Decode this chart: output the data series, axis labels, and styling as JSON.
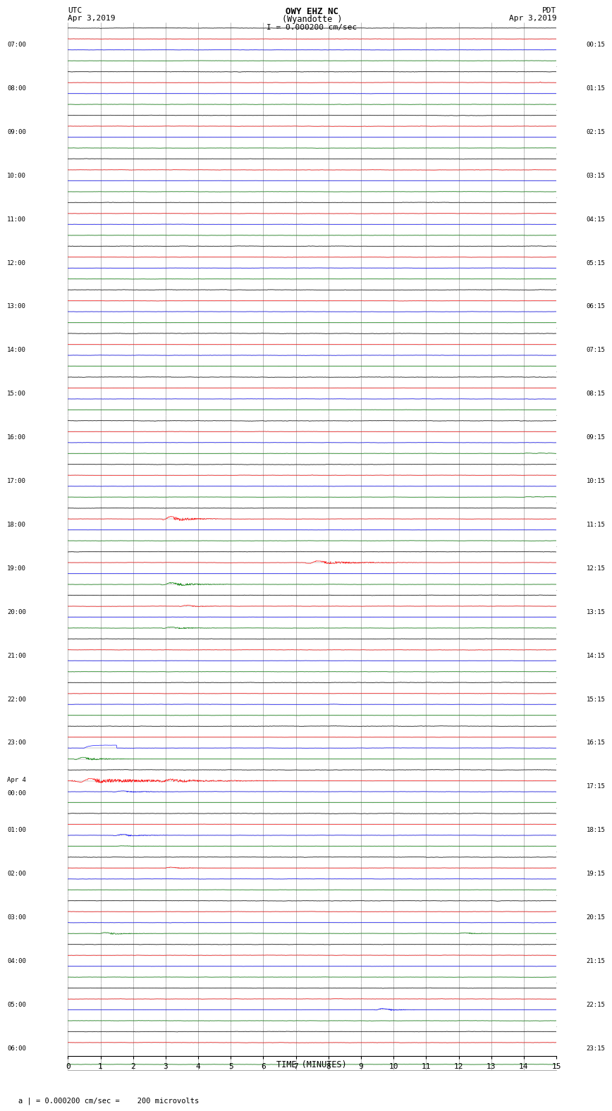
{
  "title_line1": "OWY EHZ NC",
  "title_line2": "(Wyandotte )",
  "scale_text": "I = 0.000200 cm/sec",
  "bottom_label": "a | = 0.000200 cm/sec =    200 microvolts",
  "xlabel": "TIME (MINUTES)",
  "xlim": [
    0,
    15
  ],
  "background_color": "#ffffff",
  "grid_color": "#888888",
  "left_times": [
    "07:00",
    "08:00",
    "09:00",
    "10:00",
    "11:00",
    "12:00",
    "13:00",
    "14:00",
    "15:00",
    "16:00",
    "17:00",
    "18:00",
    "19:00",
    "20:00",
    "21:00",
    "22:00",
    "23:00",
    "Apr 4\n00:00",
    "01:00",
    "02:00",
    "03:00",
    "04:00",
    "05:00",
    "06:00"
  ],
  "right_times": [
    "00:15",
    "01:15",
    "02:15",
    "03:15",
    "04:15",
    "05:15",
    "06:15",
    "07:15",
    "08:15",
    "09:15",
    "10:15",
    "11:15",
    "12:15",
    "13:15",
    "14:15",
    "15:15",
    "16:15",
    "17:15",
    "18:15",
    "19:15",
    "20:15",
    "21:15",
    "22:15",
    "23:15"
  ],
  "num_rows": 24,
  "figsize": [
    8.5,
    16.13
  ],
  "dpi": 100
}
